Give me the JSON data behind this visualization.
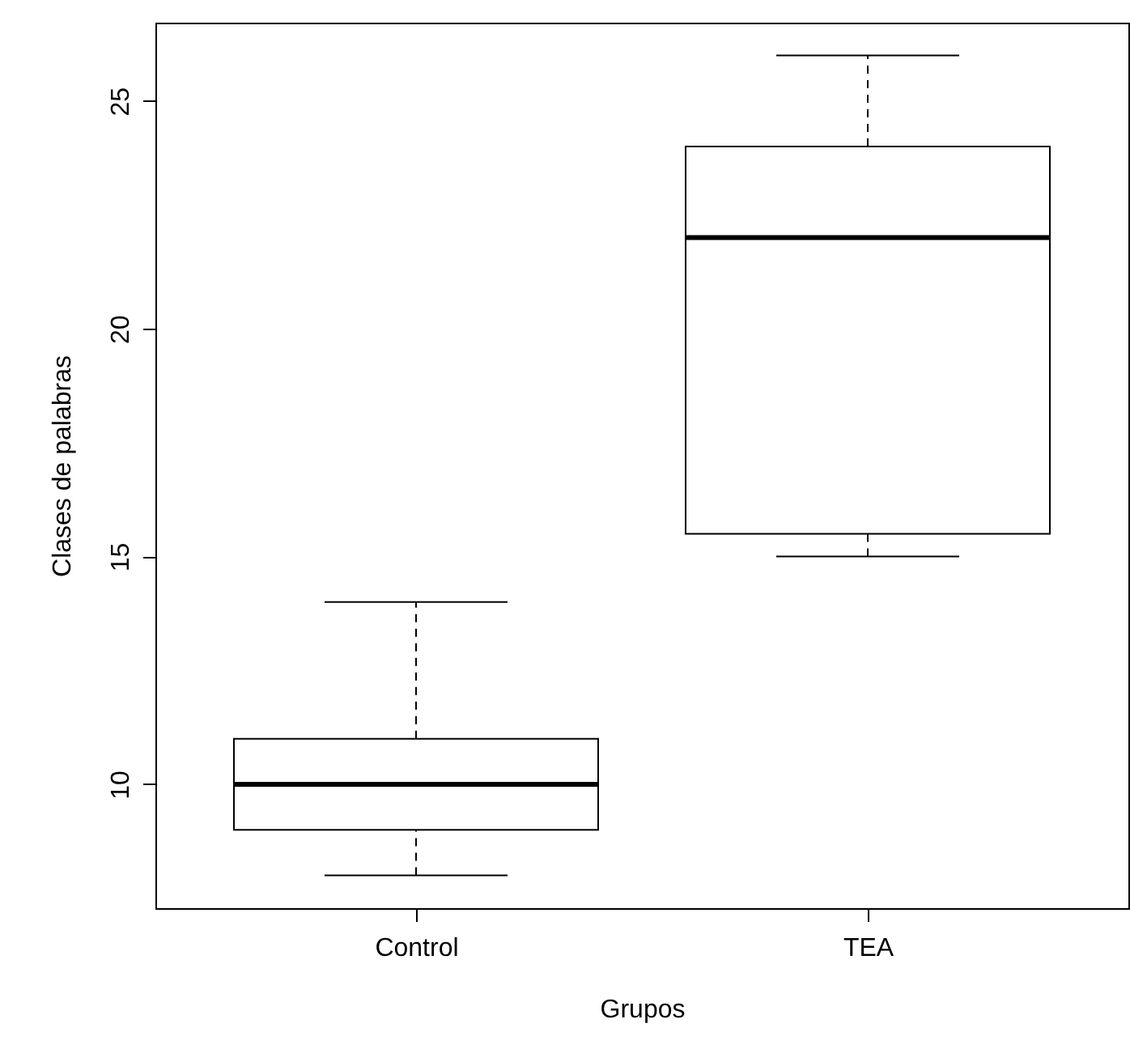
{
  "chart_data": {
    "type": "box",
    "xlabel": "Grupos",
    "ylabel": "Clases de palabras",
    "categories": [
      "Control",
      "TEA"
    ],
    "boxes": [
      {
        "low": 8,
        "q1": 9,
        "median": 10,
        "q3": 11,
        "high": 14
      },
      {
        "low": 15,
        "q1": 15.5,
        "median": 22,
        "q3": 24,
        "high": 26
      }
    ],
    "ylim": [
      7.28,
      26.72
    ],
    "yticks": [
      10,
      15,
      20,
      25
    ],
    "grid": false
  }
}
